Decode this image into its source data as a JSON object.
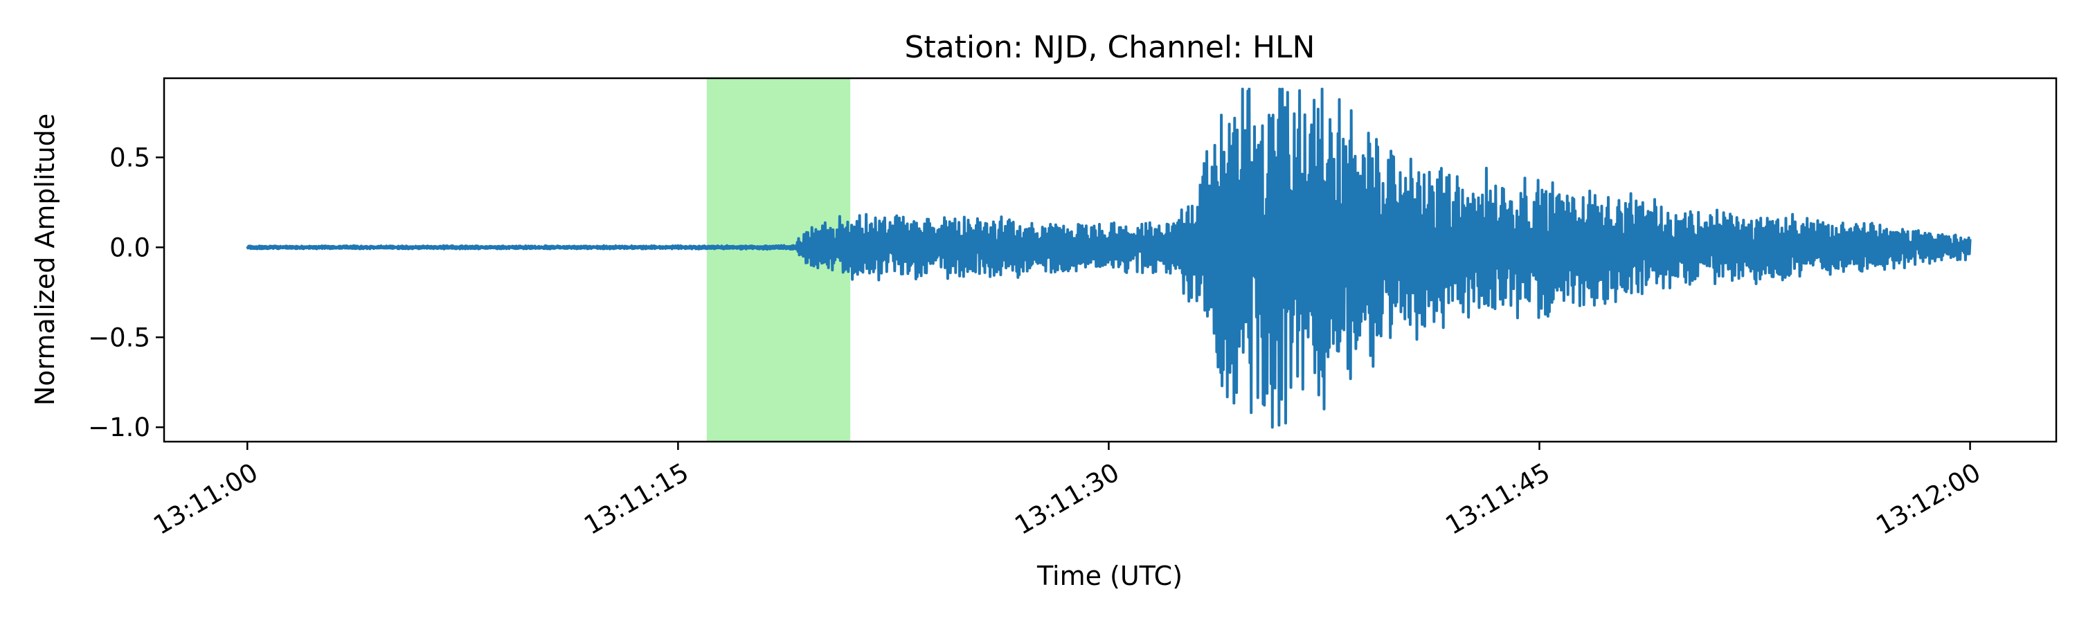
{
  "chart_data": {
    "type": "line",
    "title": "Station: NJD, Channel: HLN",
    "xlabel": "Time (UTC)",
    "ylabel": "Normalized Amplitude",
    "x_range_seconds_of_day": [
      47460,
      47520
    ],
    "xlim_seconds_of_day": [
      47457.1,
      47523.0
    ],
    "ylim": [
      -1.08,
      0.94
    ],
    "x_ticks": [
      {
        "value": 47460,
        "label": "13:11:00"
      },
      {
        "value": 47475,
        "label": "13:11:15"
      },
      {
        "value": 47490,
        "label": "13:11:30"
      },
      {
        "value": 47505,
        "label": "13:11:45"
      },
      {
        "value": 47520,
        "label": "13:12:00"
      }
    ],
    "y_ticks": [
      {
        "value": 0.5,
        "label": "0.5"
      },
      {
        "value": 0.0,
        "label": "0.0"
      },
      {
        "value": -0.5,
        "label": "−0.5"
      },
      {
        "value": -1.0,
        "label": "−1.0"
      }
    ],
    "highlight_span": {
      "x_start_seconds_of_day": 47476.0,
      "x_end_seconds_of_day": 47481.0,
      "color": "#b3f2b3"
    },
    "series": [
      {
        "color": "#1f77b4",
        "envelope_seconds_of_day": [
          [
            47460,
            0.008
          ],
          [
            47476,
            0.008
          ],
          [
            47479,
            0.01
          ],
          [
            47479.5,
            0.1
          ],
          [
            47481,
            0.17
          ],
          [
            47485,
            0.16
          ],
          [
            47489,
            0.12
          ],
          [
            47492,
            0.12
          ],
          [
            47493,
            0.3
          ],
          [
            47494,
            0.8
          ],
          [
            47496,
            0.95
          ],
          [
            47498,
            0.75
          ],
          [
            47500,
            0.5
          ],
          [
            47502,
            0.4
          ],
          [
            47505,
            0.35
          ],
          [
            47510,
            0.2
          ],
          [
            47515,
            0.15
          ],
          [
            47520,
            0.06
          ]
        ]
      }
    ],
    "grid": false
  }
}
